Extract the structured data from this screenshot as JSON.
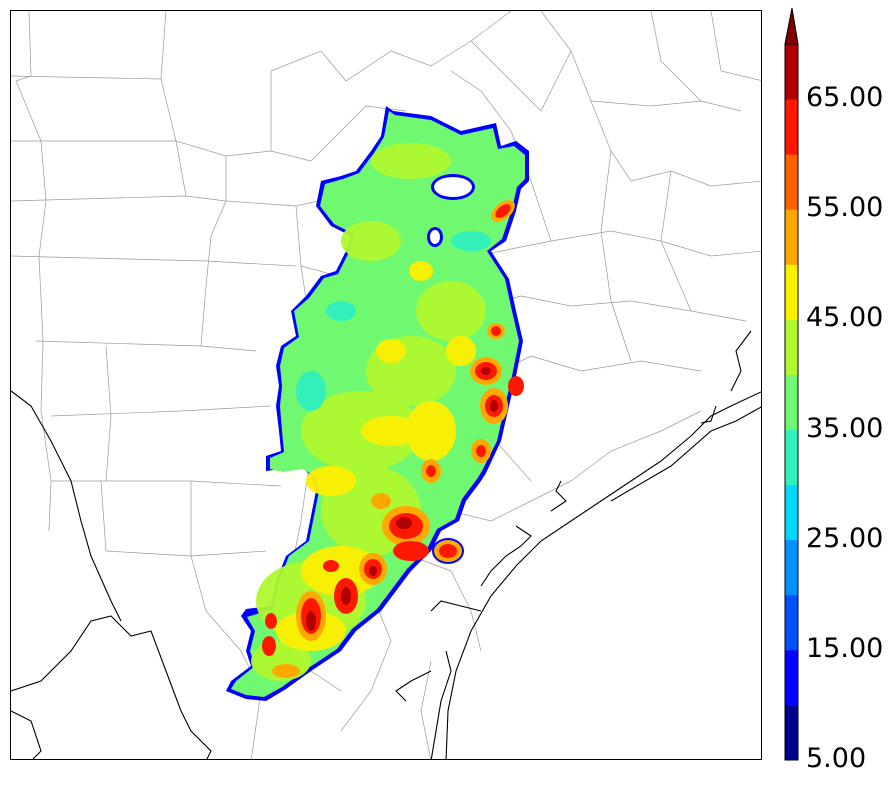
{
  "colorbar": {
    "labels": [
      "5.00",
      "15.00",
      "25.00",
      "35.00",
      "45.00",
      "55.00",
      "65.00"
    ],
    "bins": [
      {
        "from": 5,
        "to": 10,
        "color": "#00008f"
      },
      {
        "from": 10,
        "to": 15,
        "color": "#0000ff"
      },
      {
        "from": 15,
        "to": 20,
        "color": "#0050ff"
      },
      {
        "from": 20,
        "to": 25,
        "color": "#0090ff"
      },
      {
        "from": 25,
        "to": 30,
        "color": "#00d8ff"
      },
      {
        "from": 30,
        "to": 35,
        "color": "#30f0c0"
      },
      {
        "from": 35,
        "to": 40,
        "color": "#70f870"
      },
      {
        "from": 40,
        "to": 45,
        "color": "#b0f830"
      },
      {
        "from": 45,
        "to": 50,
        "color": "#fff000"
      },
      {
        "from": 50,
        "to": 55,
        "color": "#ffa800"
      },
      {
        "from": 55,
        "to": 60,
        "color": "#ff6000"
      },
      {
        "from": 60,
        "to": 65,
        "color": "#ff1800"
      },
      {
        "from": 65,
        "to": 70,
        "color": "#b00000"
      }
    ],
    "extend_color": "#800000",
    "extend": "max"
  },
  "colors": {
    "outline": "#0000ff",
    "county_lines": "#9a9a9a",
    "coast_lines": "#000000"
  }
}
